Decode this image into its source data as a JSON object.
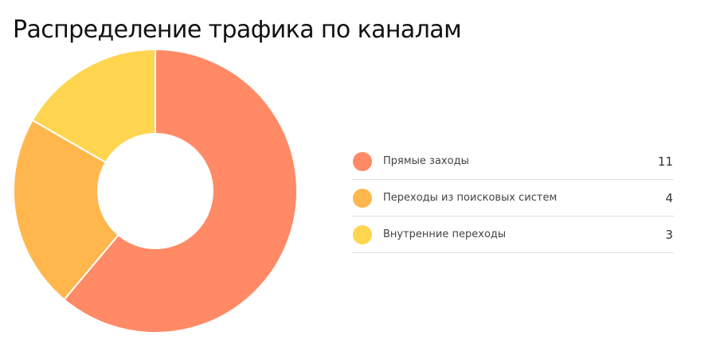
{
  "chart_data": {
    "type": "pie",
    "variant": "donut",
    "title": "Распределение трафика по каналам",
    "categories": [
      "Прямые заходы",
      "Переходы из поисковых систем",
      "Внутренние переходы"
    ],
    "values": [
      11,
      4,
      3
    ],
    "colors": [
      "#ff8a65",
      "#ffb74d",
      "#ffd54f"
    ],
    "legend_position": "right"
  }
}
